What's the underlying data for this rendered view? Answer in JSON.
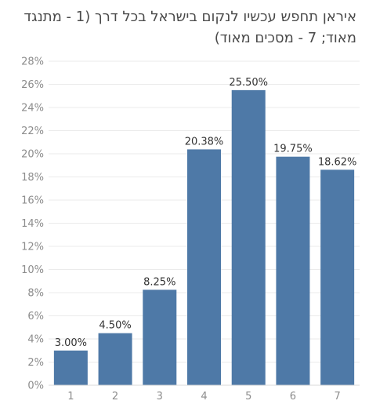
{
  "chart_data": {
    "type": "bar",
    "title": "איראן תחפש עכשיו לנקום בישראל בכל דרך (1 - מתנגד מאוד; 7 - מסכים מאוד)",
    "categories": [
      "1",
      "2",
      "3",
      "4",
      "5",
      "6",
      "7"
    ],
    "values": [
      3.0,
      4.5,
      8.25,
      20.38,
      25.5,
      19.75,
      18.62
    ],
    "data_labels": [
      "3.00%",
      "4.50%",
      "8.25%",
      "20.38%",
      "25.50%",
      "19.75%",
      "18.62%"
    ],
    "y_ticks": [
      "0%",
      "2%",
      "4%",
      "6%",
      "8%",
      "10%",
      "12%",
      "14%",
      "16%",
      "18%",
      "20%",
      "22%",
      "24%",
      "26%",
      "28%"
    ],
    "ylim": [
      0,
      28
    ],
    "xlabel": "",
    "ylabel": "",
    "grid": true,
    "bar_color": "#4e79a7"
  }
}
